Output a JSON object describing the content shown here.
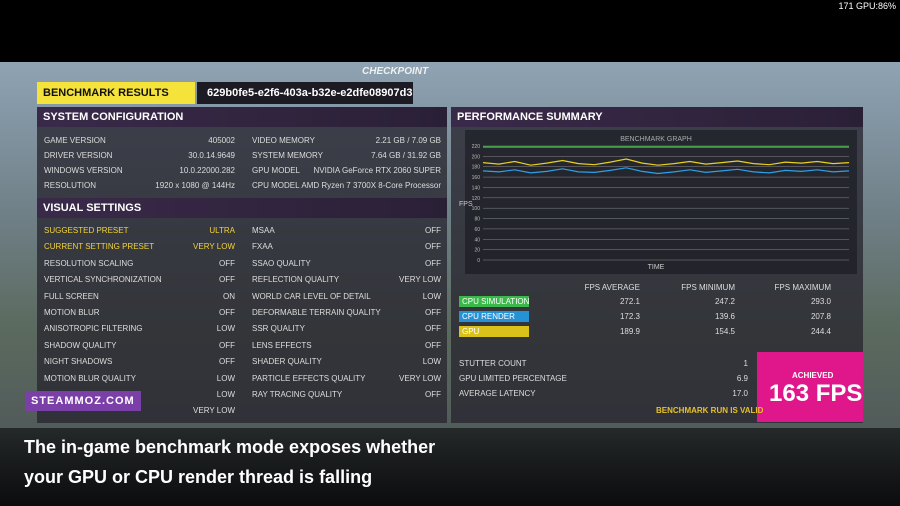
{
  "overlay": "171 GPU:86%",
  "checkpoint": "CHECKPOINT",
  "header": {
    "title": "BENCHMARK RESULTS",
    "id": "629b0fe5-e2f6-403a-b32e-e2dfe08907d3"
  },
  "system_config": {
    "title": "SYSTEM CONFIGURATION",
    "left": [
      [
        "GAME VERSION",
        "405002"
      ],
      [
        "DRIVER VERSION",
        "30.0.14.9649"
      ],
      [
        "WINDOWS VERSION",
        "10.0.22000.282"
      ],
      [
        "RESOLUTION",
        "1920 x 1080 @ 144Hz"
      ]
    ],
    "right": [
      [
        "VIDEO MEMORY",
        "2.21 GB / 7.09 GB"
      ],
      [
        "SYSTEM MEMORY",
        "7.64 GB / 31.92 GB"
      ],
      [
        "GPU MODEL",
        "NVIDIA GeForce RTX 2060 SUPER"
      ],
      [
        "CPU MODEL",
        "AMD Ryzen 7 3700X 8-Core Processor"
      ]
    ]
  },
  "visual_settings": {
    "title": "VISUAL SETTINGS",
    "left": [
      [
        "SUGGESTED PRESET",
        "ULTRA"
      ],
      [
        "CURRENT SETTING PRESET",
        "VERY LOW"
      ],
      [
        "RESOLUTION SCALING",
        "OFF"
      ],
      [
        "VERTICAL SYNCHRONIZATION",
        "OFF"
      ],
      [
        "FULL SCREEN",
        "ON"
      ],
      [
        "MOTION BLUR",
        "OFF"
      ],
      [
        "ANISOTROPIC FILTERING",
        "LOW"
      ],
      [
        "SHADOW QUALITY",
        "OFF"
      ],
      [
        "NIGHT SHADOWS",
        "OFF"
      ],
      [
        "MOTION BLUR QUALITY",
        "LOW"
      ],
      [
        null,
        "LOW"
      ],
      [
        null,
        "VERY LOW"
      ]
    ],
    "right": [
      [
        "MSAA",
        "OFF"
      ],
      [
        "FXAA",
        "OFF"
      ],
      [
        "SSAO QUALITY",
        "OFF"
      ],
      [
        "REFLECTION QUALITY",
        "VERY LOW"
      ],
      [
        "WORLD CAR LEVEL OF DETAIL",
        "LOW"
      ],
      [
        "DEFORMABLE TERRAIN QUALITY",
        "OFF"
      ],
      [
        "SSR QUALITY",
        "OFF"
      ],
      [
        "LENS EFFECTS",
        "OFF"
      ],
      [
        "SHADER QUALITY",
        "LOW"
      ],
      [
        "PARTICLE EFFECTS QUALITY",
        "VERY LOW"
      ],
      [
        "RAY TRACING QUALITY",
        "OFF"
      ]
    ]
  },
  "performance": {
    "title": "PERFORMANCE SUMMARY",
    "columns": [
      "FPS AVERAGE",
      "FPS MINIMUM",
      "FPS MAXIMUM"
    ],
    "rows": [
      [
        "272.1",
        "247.2",
        "293.0"
      ],
      [
        "172.3",
        "139.6",
        "207.8"
      ],
      [
        "189.9",
        "154.5",
        "244.4"
      ]
    ],
    "stats": [
      [
        "STUTTER COUNT",
        "1"
      ],
      [
        "GPU LIMITED PERCENTAGE",
        "6.9"
      ],
      [
        "AVERAGE LATENCY",
        "17.0"
      ]
    ],
    "valid": "BENCHMARK RUN IS VALID",
    "achieved_label": "ACHIEVED",
    "achieved": "163 FPS"
  },
  "chart_data": {
    "type": "line",
    "title": "BENCHMARK GRAPH",
    "x_label": "TIME",
    "y_label": "FPS",
    "ylim": [
      0,
      220
    ],
    "yticks": [
      0,
      20,
      40,
      60,
      80,
      100,
      120,
      140,
      160,
      180,
      200,
      220
    ],
    "grid": true,
    "series": [
      {
        "name": "CPU SIMULATION",
        "color": "#3ecf3e",
        "values": [
          218,
          218,
          218,
          218,
          218,
          218,
          218,
          218,
          218,
          218,
          218,
          218,
          218,
          218,
          218,
          218,
          218,
          218,
          218,
          218,
          218,
          218,
          218,
          218
        ]
      },
      {
        "name": "CPU RENDER",
        "color": "#2f9fe8",
        "values": [
          172,
          170,
          174,
          168,
          171,
          176,
          170,
          169,
          173,
          178,
          171,
          167,
          170,
          174,
          169,
          172,
          175,
          170,
          168,
          173,
          171,
          174,
          170,
          172
        ]
      },
      {
        "name": "GPU",
        "color": "#e8d21e",
        "values": [
          188,
          185,
          190,
          183,
          187,
          192,
          186,
          184,
          189,
          195,
          187,
          183,
          186,
          190,
          185,
          188,
          191,
          186,
          184,
          189,
          187,
          190,
          186,
          188
        ]
      }
    ]
  },
  "watermark": "STEAMMOZ.COM",
  "caption": [
    "The in-game benchmark mode exposes whether",
    "your GPU or CPU render thread is falling"
  ]
}
